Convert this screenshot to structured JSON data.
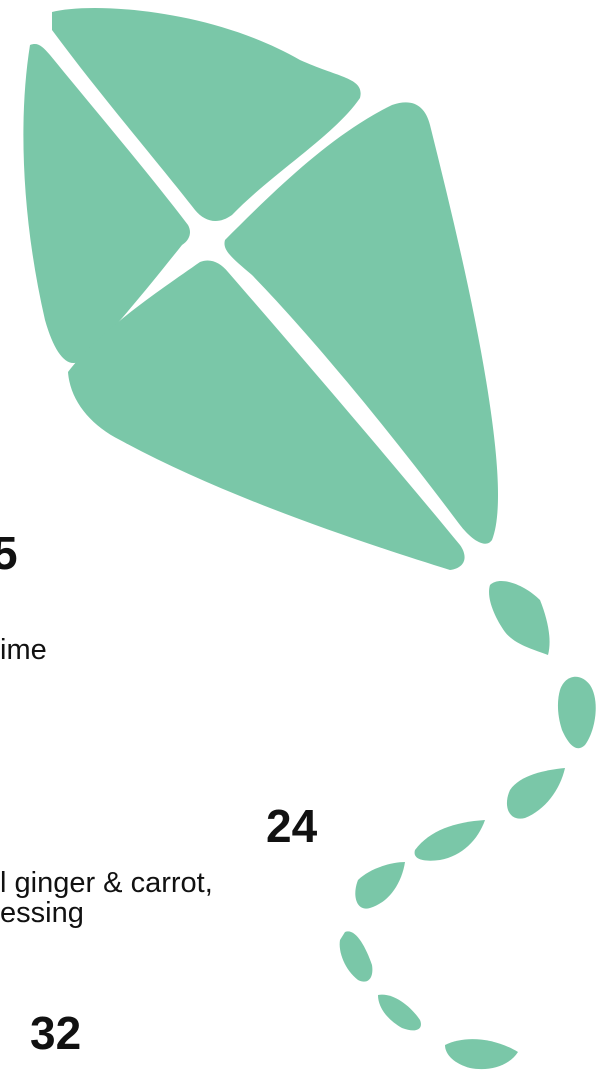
{
  "colors": {
    "kite": "#7AC7A8",
    "text": "#111111",
    "background": "#FFFFFF"
  },
  "icons": {
    "kite": "kite-illustration-icon"
  },
  "items": [
    {
      "number": "5",
      "text": "ime"
    },
    {
      "number": "24",
      "text_line1": "l ginger & carrot,",
      "text_line2": "essing"
    },
    {
      "number": "32"
    }
  ]
}
